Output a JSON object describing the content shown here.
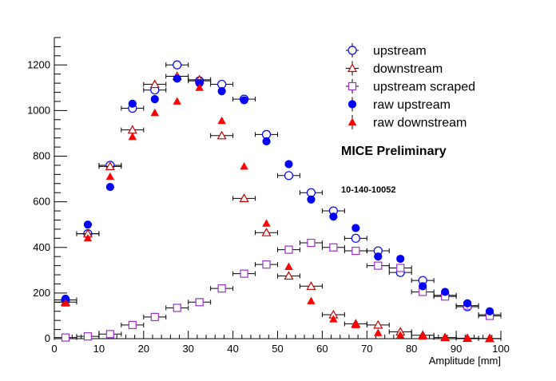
{
  "chart_data": {
    "type": "scatter",
    "title": "",
    "xlabel": "Amplitude [mm]",
    "ylabel": "",
    "xlim": [
      0,
      100
    ],
    "ylim": [
      0,
      1320
    ],
    "x_ticks": [
      0,
      10,
      20,
      30,
      40,
      50,
      60,
      70,
      80,
      90,
      100
    ],
    "y_ticks": [
      0,
      200,
      400,
      600,
      800,
      1000,
      1200
    ],
    "grid": false,
    "legend_position": "top-right",
    "x": [
      2.5,
      7.5,
      12.5,
      17.5,
      22.5,
      27.5,
      32.5,
      37.5,
      42.5,
      47.5,
      52.5,
      57.5,
      62.5,
      67.5,
      72.5,
      77.5,
      82.5,
      87.5,
      92.5,
      97.5
    ],
    "x_error": 2.5,
    "series": [
      {
        "name": "upstream",
        "marker": "open-circle",
        "color": "#0000ff",
        "values": [
          170,
          460,
          760,
          1010,
          1090,
          1200,
          1130,
          1115,
          1050,
          895,
          715,
          640,
          560,
          440,
          385,
          290,
          255,
          190,
          140,
          105
        ]
      },
      {
        "name": "downstream",
        "marker": "open-triangle",
        "color": "#cc0000",
        "values": [
          160,
          460,
          755,
          915,
          1115,
          1150,
          1135,
          890,
          615,
          465,
          275,
          230,
          105,
          65,
          60,
          30,
          15,
          5,
          2,
          1
        ]
      },
      {
        "name": "upstream scraped",
        "marker": "open-square",
        "color": "#9b30d0",
        "values": [
          5,
          10,
          20,
          60,
          95,
          135,
          160,
          220,
          285,
          325,
          390,
          420,
          400,
          385,
          320,
          310,
          205,
          185,
          145,
          100
        ]
      },
      {
        "name": "raw upstream",
        "marker": "filled-circle",
        "color": "#0000ff",
        "values": [
          175,
          500,
          665,
          1030,
          1050,
          1140,
          1120,
          1085,
          1045,
          865,
          765,
          610,
          535,
          485,
          360,
          350,
          230,
          205,
          155,
          120
        ]
      },
      {
        "name": "raw downstream",
        "marker": "filled-triangle",
        "color": "#ff0000",
        "values": [
          155,
          440,
          710,
          885,
          990,
          1040,
          1100,
          955,
          755,
          505,
          315,
          165,
          85,
          60,
          25,
          15,
          10,
          5,
          2,
          1
        ]
      }
    ],
    "annotations": [
      "MICE Preliminary",
      "10-140-10052"
    ]
  }
}
